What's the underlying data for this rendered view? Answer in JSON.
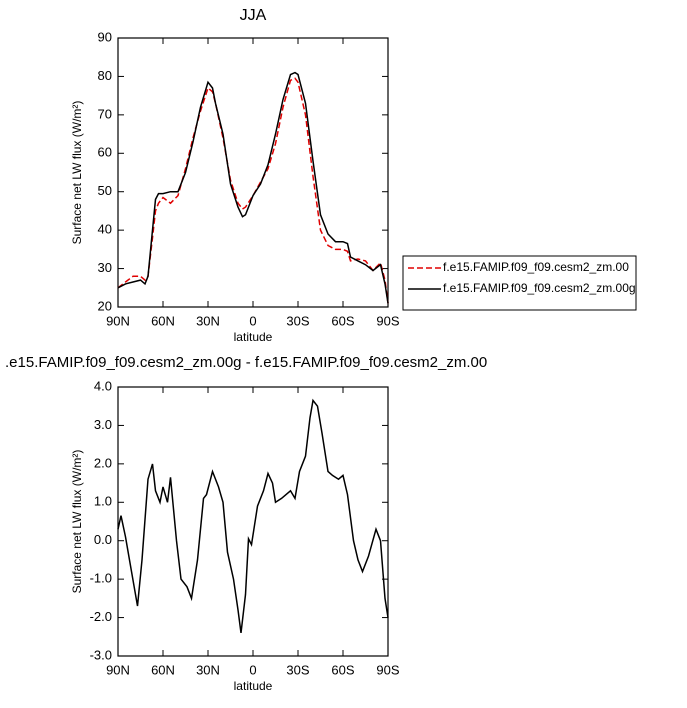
{
  "chart_data": [
    {
      "type": "line",
      "title": "JJA",
      "xlabel": "latitude",
      "ylabel": "Surface net LW flux (W/m²)",
      "x": [
        90,
        85,
        80,
        75,
        72,
        70,
        67,
        65,
        63,
        60,
        55,
        50,
        45,
        40,
        35,
        30,
        27,
        25,
        20,
        15,
        10,
        7,
        5,
        0,
        -5,
        -10,
        -15,
        -20,
        -25,
        -28,
        -30,
        -35,
        -40,
        -45,
        -50,
        -55,
        -60,
        -63,
        -65,
        -70,
        -75,
        -80,
        -85,
        -88,
        -90
      ],
      "series": [
        {
          "name": "f.e15.FAMIP.f09_f09.cesm2_zm.00",
          "color": "#e00000",
          "linestyle": "dashed",
          "values": [
            25,
            26.5,
            28,
            28,
            27,
            28,
            38,
            45,
            47,
            48.5,
            47,
            49,
            56,
            64,
            71,
            77,
            76,
            73,
            64,
            53,
            47,
            45.5,
            46,
            49,
            52.5,
            56,
            62.5,
            72,
            79,
            79.5,
            78.5,
            70,
            54,
            40,
            36,
            35,
            35,
            34.5,
            32,
            32.5,
            32,
            29.5,
            31.5,
            27,
            21
          ]
        },
        {
          "name": "f.e15.FAMIP.f09_f09.cesm2_zm.00g",
          "color": "#000000",
          "linestyle": "solid",
          "values": [
            25,
            26,
            26.5,
            27,
            26,
            28,
            40,
            48,
            49.5,
            49.5,
            50,
            50,
            55,
            63,
            72,
            78.5,
            77,
            73,
            65,
            52,
            46,
            43.5,
            44,
            49,
            52,
            57,
            65,
            74,
            80.5,
            81,
            80.5,
            73,
            58,
            44,
            39,
            37,
            37,
            36.5,
            33,
            32,
            31,
            29.5,
            31,
            26,
            21
          ]
        }
      ],
      "xlim": [
        90,
        -90
      ],
      "xticks": [
        {
          "value": 90,
          "label": "90N"
        },
        {
          "value": 60,
          "label": "60N"
        },
        {
          "value": 30,
          "label": "30N"
        },
        0,
        {
          "value": -30,
          "label": "30S"
        },
        {
          "value": -60,
          "label": "60S"
        },
        {
          "value": -90,
          "label": "90S"
        }
      ],
      "ylim": [
        20,
        90
      ],
      "yticks": [
        20,
        30,
        40,
        50,
        60,
        70,
        80,
        90
      ],
      "legend": "right"
    },
    {
      "type": "line",
      "title": ".e15.FAMIP.f09_f09.cesm2_zm.00g - f.e15.FAMIP.f09_f09.cesm2_zm.00",
      "xlabel": "latitude",
      "ylabel": "Surface net LW flux (W/m²)",
      "x": [
        90,
        88,
        85,
        81,
        77,
        74,
        70,
        67,
        65,
        62,
        60,
        57,
        55,
        51,
        48,
        44,
        41,
        37,
        33,
        31,
        27,
        23,
        20,
        17,
        13,
        10,
        8,
        5,
        3,
        1,
        -3,
        -7,
        -10,
        -13,
        -15,
        -19,
        -25,
        -28,
        -31,
        -35,
        -38,
        -40,
        -43,
        -46,
        -50,
        -53,
        -57,
        -60,
        -63,
        -67,
        -70,
        -73,
        -77,
        -82,
        -85,
        -88,
        -90
      ],
      "color": "#000000",
      "values": [
        0.3,
        0.65,
        0.1,
        -0.8,
        -1.7,
        -0.5,
        1.6,
        2.0,
        1.3,
        1.0,
        1.4,
        1.0,
        1.65,
        0,
        -1.0,
        -1.2,
        -1.5,
        -0.5,
        1.1,
        1.2,
        1.8,
        1.4,
        1.0,
        -0.3,
        -1.0,
        -1.8,
        -2.4,
        -1.4,
        0.05,
        -0.1,
        0.9,
        1.3,
        1.75,
        1.5,
        1.0,
        1.1,
        1.3,
        1.1,
        1.8,
        2.2,
        3.2,
        3.65,
        3.5,
        2.8,
        1.8,
        1.7,
        1.6,
        1.7,
        1.2,
        0,
        -0.5,
        -0.8,
        -0.4,
        0.3,
        0,
        -1.5,
        -2.0
      ],
      "xlim": [
        90,
        -90
      ],
      "xticks": [
        {
          "value": 90,
          "label": "90N"
        },
        {
          "value": 60,
          "label": "60N"
        },
        {
          "value": 30,
          "label": "30N"
        },
        0,
        {
          "value": -30,
          "label": "30S"
        },
        {
          "value": -60,
          "label": "60S"
        },
        {
          "value": -90,
          "label": "90S"
        }
      ],
      "ylim": [
        -3,
        4
      ],
      "yticks": [
        {
          "value": -3,
          "label": "-3.0"
        },
        {
          "value": -2,
          "label": "-2.0"
        },
        {
          "value": -1,
          "label": "-1.0"
        },
        {
          "value": 0,
          "label": "0.0"
        },
        {
          "value": 1,
          "label": "1.0"
        },
        {
          "value": 2,
          "label": "2.0"
        },
        {
          "value": 3,
          "label": "3.0"
        },
        {
          "value": 4,
          "label": "4.0"
        }
      ]
    }
  ]
}
